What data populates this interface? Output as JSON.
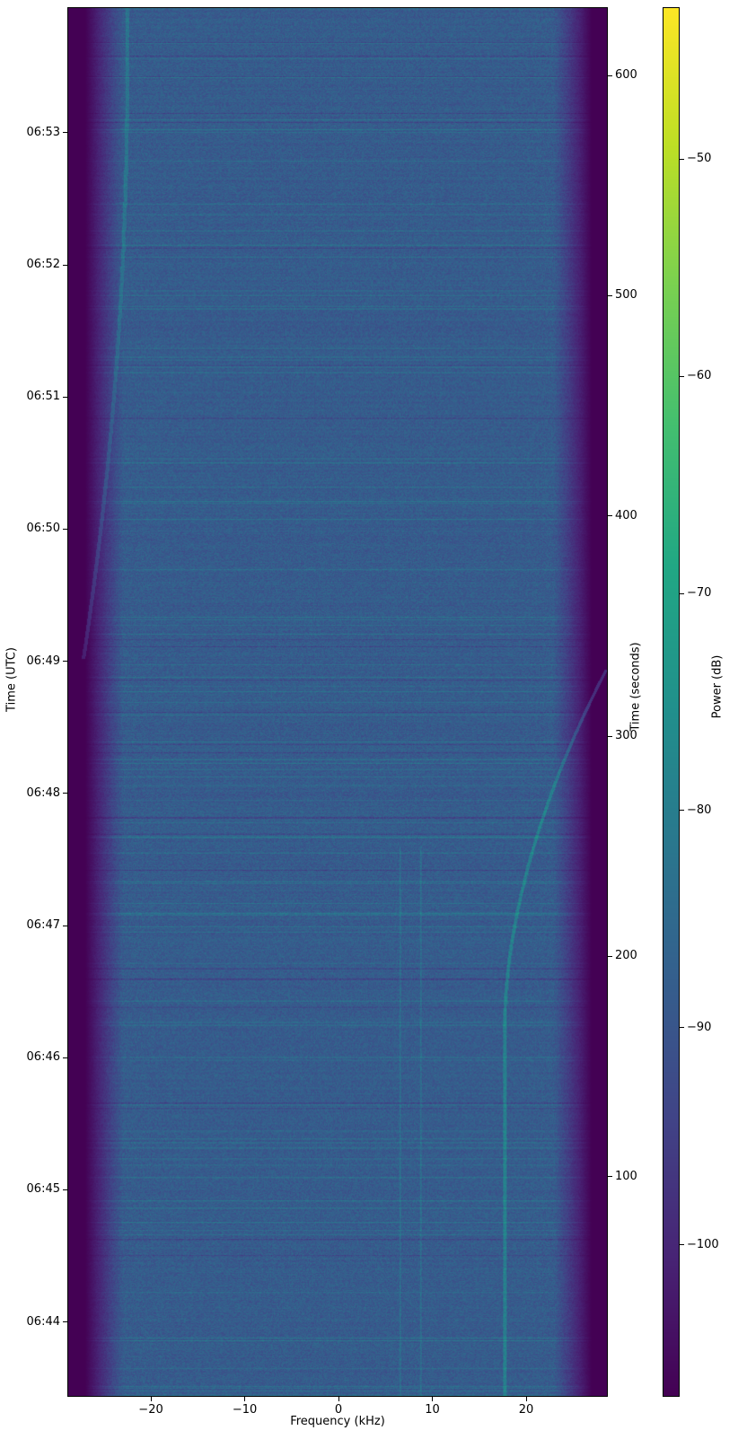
{
  "chart_data": {
    "type": "heatmap",
    "title": "",
    "xlabel": "Frequency (kHz)",
    "ylabel_left": "Time (UTC)",
    "ylabel_right": "Time (seconds)",
    "colorbar_label": "Power (dB)",
    "xlim": [
      -28.9,
      28.7
    ],
    "ylim_seconds": [
      0,
      631
    ],
    "ylim_utc": [
      "06:43:26",
      "06:53:57"
    ],
    "clim": [
      -107,
      -43
    ],
    "colormap": "viridis",
    "x_ticks": [
      -20,
      -10,
      0,
      10,
      20
    ],
    "x_tick_labels": [
      "−20",
      "−10",
      "0",
      "10",
      "20"
    ],
    "y_left_ticks": [
      "06:44",
      "06:45",
      "06:46",
      "06:47",
      "06:48",
      "06:49",
      "06:50",
      "06:51",
      "06:52",
      "06:53"
    ],
    "y_right_ticks": [
      100,
      200,
      300,
      400,
      500,
      600
    ],
    "colorbar_ticks": [
      -100,
      -90,
      -80,
      -70,
      -60,
      -50
    ],
    "colorbar_tick_labels": [
      "−100",
      "−90",
      "−80",
      "−70",
      "−60",
      "−50"
    ],
    "grid": false,
    "colors": [
      "#440154",
      "#482475",
      "#414487",
      "#355f8d",
      "#2a788e",
      "#21918c",
      "#22a884",
      "#44bf70",
      "#7ad151",
      "#bddf26",
      "#fde725"
    ]
  }
}
